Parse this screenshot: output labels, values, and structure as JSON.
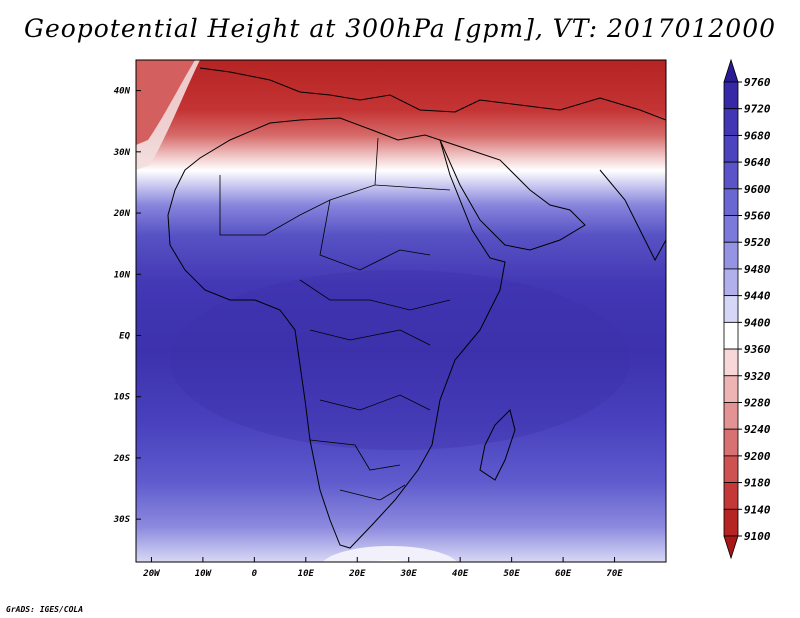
{
  "title": "Geopotential Height at 300hPa [gpm], VT: 2017012000",
  "credit": "GrADS: IGES/COLA",
  "map": {
    "lon_range": [
      -23,
      80
    ],
    "lat_range": [
      -37,
      45
    ],
    "lon_ticks": [
      {
        "value": -20,
        "label": "20W"
      },
      {
        "value": -10,
        "label": "10W"
      },
      {
        "value": 0,
        "label": "0"
      },
      {
        "value": 10,
        "label": "10E"
      },
      {
        "value": 20,
        "label": "20E"
      },
      {
        "value": 30,
        "label": "30E"
      },
      {
        "value": 40,
        "label": "40E"
      },
      {
        "value": 50,
        "label": "50E"
      },
      {
        "value": 60,
        "label": "60E"
      },
      {
        "value": 70,
        "label": "70E"
      }
    ],
    "lat_ticks": [
      {
        "value": 40,
        "label": "40N"
      },
      {
        "value": 30,
        "label": "30N"
      },
      {
        "value": 20,
        "label": "20N"
      },
      {
        "value": 10,
        "label": "10N"
      },
      {
        "value": 0,
        "label": "EQ"
      },
      {
        "value": -10,
        "label": "10S"
      },
      {
        "value": -20,
        "label": "20S"
      },
      {
        "value": -30,
        "label": "30S"
      }
    ]
  },
  "colorbar": {
    "labels": [
      "9760",
      "9720",
      "9680",
      "9640",
      "9600",
      "9560",
      "9520",
      "9480",
      "9440",
      "9400",
      "9360",
      "9320",
      "9280",
      "9240",
      "9200",
      "9180",
      "9140",
      "9100"
    ],
    "colors": [
      "#2a1a96",
      "#3728a8",
      "#4236b5",
      "#4c43be",
      "#5a54c8",
      "#6a67d2",
      "#7b79da",
      "#9593e3",
      "#b1b0ec",
      "#d6d6f6",
      "#ffffff",
      "#f7d7d7",
      "#eeb3b3",
      "#e39393",
      "#d87272",
      "#cf5252",
      "#c43838",
      "#b62424",
      "#a81818"
    ]
  }
}
